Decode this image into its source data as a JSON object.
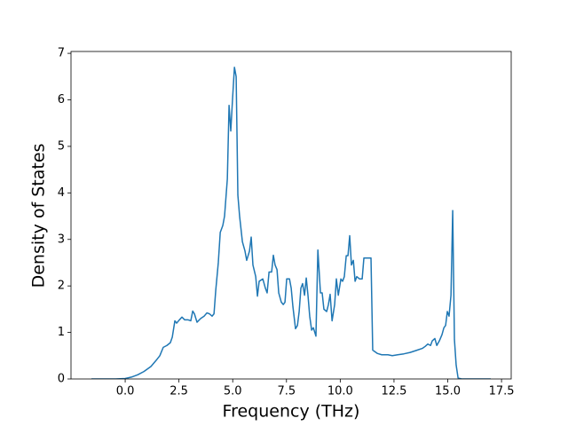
{
  "chart_data": {
    "type": "line",
    "x_label": "Frequency (THz)",
    "y_label": "Density of States",
    "color": "#1f77b4",
    "x": [
      -1.57,
      -0.45,
      0,
      0.29,
      0.58,
      0.87,
      1.2,
      1.44,
      1.61,
      1.77,
      1.94,
      2.1,
      2.19,
      2.31,
      2.39,
      2.52,
      2.64,
      2.77,
      2.93,
      3.05,
      3.14,
      3.22,
      3.34,
      3.51,
      3.67,
      3.8,
      3.92,
      4.04,
      4.13,
      4.21,
      4.33,
      4.42,
      4.54,
      4.62,
      4.75,
      4.83,
      4.91,
      4.99,
      5.08,
      5.16,
      5.24,
      5.32,
      5.45,
      5.57,
      5.65,
      5.78,
      5.86,
      5.94,
      6.07,
      6.15,
      6.23,
      6.4,
      6.52,
      6.6,
      6.69,
      6.81,
      6.89,
      6.97,
      7.06,
      7.14,
      7.26,
      7.35,
      7.43,
      7.51,
      7.64,
      7.72,
      7.8,
      7.92,
      8.01,
      8.09,
      8.17,
      8.25,
      8.34,
      8.42,
      8.5,
      8.58,
      8.67,
      8.75,
      8.87,
      8.96,
      9.08,
      9.16,
      9.24,
      9.37,
      9.45,
      9.53,
      9.62,
      9.74,
      9.82,
      9.91,
      10.03,
      10.11,
      10.19,
      10.28,
      10.36,
      10.44,
      10.52,
      10.61,
      10.69,
      10.77,
      10.9,
      11.02,
      11.1,
      11.31,
      11.43,
      11.51,
      11.72,
      11.93,
      12.22,
      12.42,
      12.67,
      12.96,
      13.25,
      13.58,
      13.83,
      13.95,
      14.07,
      14.2,
      14.28,
      14.4,
      14.49,
      14.61,
      14.73,
      14.82,
      14.9,
      14.98,
      15.06,
      15.15,
      15.23,
      15.31,
      15.39,
      15.48,
      15.64,
      17.0
    ],
    "values": [
      0,
      0,
      0.01,
      0.04,
      0.09,
      0.16,
      0.27,
      0.4,
      0.5,
      0.68,
      0.72,
      0.78,
      0.9,
      1.25,
      1.2,
      1.27,
      1.33,
      1.27,
      1.27,
      1.25,
      1.46,
      1.4,
      1.22,
      1.3,
      1.35,
      1.42,
      1.4,
      1.35,
      1.4,
      1.9,
      2.5,
      3.15,
      3.3,
      3.5,
      4.3,
      5.88,
      5.33,
      6.0,
      6.7,
      6.5,
      3.95,
      3.5,
      2.95,
      2.75,
      2.55,
      2.75,
      3.05,
      2.45,
      2.2,
      1.78,
      2.1,
      2.15,
      1.95,
      1.85,
      2.3,
      2.3,
      2.66,
      2.45,
      2.35,
      1.85,
      1.65,
      1.6,
      1.65,
      2.15,
      2.15,
      1.95,
      1.55,
      1.08,
      1.15,
      1.45,
      1.95,
      2.05,
      1.8,
      2.17,
      1.8,
      1.35,
      1.05,
      1.1,
      0.92,
      2.77,
      1.85,
      1.85,
      1.5,
      1.45,
      1.6,
      1.82,
      1.25,
      1.6,
      2.15,
      1.8,
      2.15,
      2.1,
      2.2,
      2.65,
      2.65,
      3.08,
      2.45,
      2.55,
      2.1,
      2.2,
      2.15,
      2.15,
      2.6,
      2.6,
      2.6,
      0.62,
      0.55,
      0.52,
      0.52,
      0.5,
      0.52,
      0.54,
      0.57,
      0.62,
      0.66,
      0.7,
      0.75,
      0.72,
      0.82,
      0.87,
      0.72,
      0.82,
      0.95,
      1.1,
      1.15,
      1.45,
      1.35,
      1.8,
      3.62,
      0.85,
      0.3,
      0.02,
      0,
      0
    ],
    "xlim": [
      -2.52,
      17.95
    ],
    "ylim": [
      0,
      7.04
    ],
    "xticks": [
      {
        "value": 0,
        "label": "0.0"
      },
      {
        "value": 2.5,
        "label": "2.5"
      },
      {
        "value": 5,
        "label": "5.0"
      },
      {
        "value": 7.5,
        "label": "7.5"
      },
      {
        "value": 10,
        "label": "10.0"
      },
      {
        "value": 12.5,
        "label": "12.5"
      },
      {
        "value": 15,
        "label": "15.0"
      },
      {
        "value": 17.5,
        "label": "17.5"
      }
    ],
    "yticks": [
      0,
      1,
      2,
      3,
      4,
      5,
      6,
      7
    ]
  }
}
